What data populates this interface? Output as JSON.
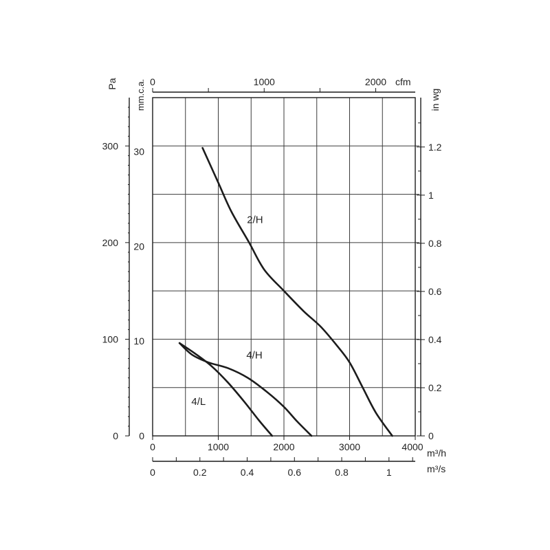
{
  "chart_data": {
    "type": "line",
    "xlabel": "m3/h",
    "xlim": [
      0,
      4000
    ],
    "xticks": [
      0,
      1000,
      2000,
      3000,
      4000
    ],
    "ylim": [
      0,
      350
    ],
    "yticks": [
      0,
      100,
      200,
      300
    ],
    "ylabel": "Pa",
    "grid": true,
    "secondary_axes": {
      "left_mmca": {
        "label": "mm.c.a.",
        "ticks": [
          0,
          10,
          20,
          30
        ]
      },
      "top_cfm": {
        "label": "cfm",
        "ticks": [
          0,
          1000,
          2000
        ]
      },
      "right_inwg": {
        "label": "in wg",
        "ticks": [
          0,
          0.2,
          0.4,
          0.6,
          0.8,
          1,
          1.2
        ]
      },
      "bottom_m3s": {
        "label": "m3/s",
        "ticks": [
          0,
          0.2,
          0.4,
          0.6,
          0.8,
          1
        ]
      }
    },
    "series": [
      {
        "name": "2/H",
        "points": [
          [
            760,
            298
          ],
          [
            1000,
            262
          ],
          [
            1200,
            232
          ],
          [
            1470,
            200
          ],
          [
            1700,
            172
          ],
          [
            2000,
            150
          ],
          [
            2300,
            129
          ],
          [
            2560,
            113
          ],
          [
            2800,
            94
          ],
          [
            3000,
            76
          ],
          [
            3200,
            50
          ],
          [
            3400,
            24
          ],
          [
            3650,
            0
          ]
        ]
      },
      {
        "name": "4/H",
        "points": [
          [
            410,
            96
          ],
          [
            600,
            84
          ],
          [
            850,
            76
          ],
          [
            1150,
            70
          ],
          [
            1450,
            60
          ],
          [
            1750,
            45
          ],
          [
            2000,
            30
          ],
          [
            2200,
            15
          ],
          [
            2420,
            0
          ]
        ]
      },
      {
        "name": "4/L",
        "points": [
          [
            410,
            96
          ],
          [
            650,
            85
          ],
          [
            900,
            72
          ],
          [
            1150,
            55
          ],
          [
            1400,
            35
          ],
          [
            1620,
            16
          ],
          [
            1820,
            0
          ]
        ]
      }
    ],
    "curve_labels": [
      "2/H",
      "4/H",
      "4/L"
    ]
  },
  "labels": {
    "pa_unit": "Pa",
    "mmca_unit": "mm.c.a.",
    "cfm_unit": "cfm",
    "inwg_unit": "in wg",
    "m3h_unit": "m³/h",
    "m3s_unit": "m³/s"
  }
}
